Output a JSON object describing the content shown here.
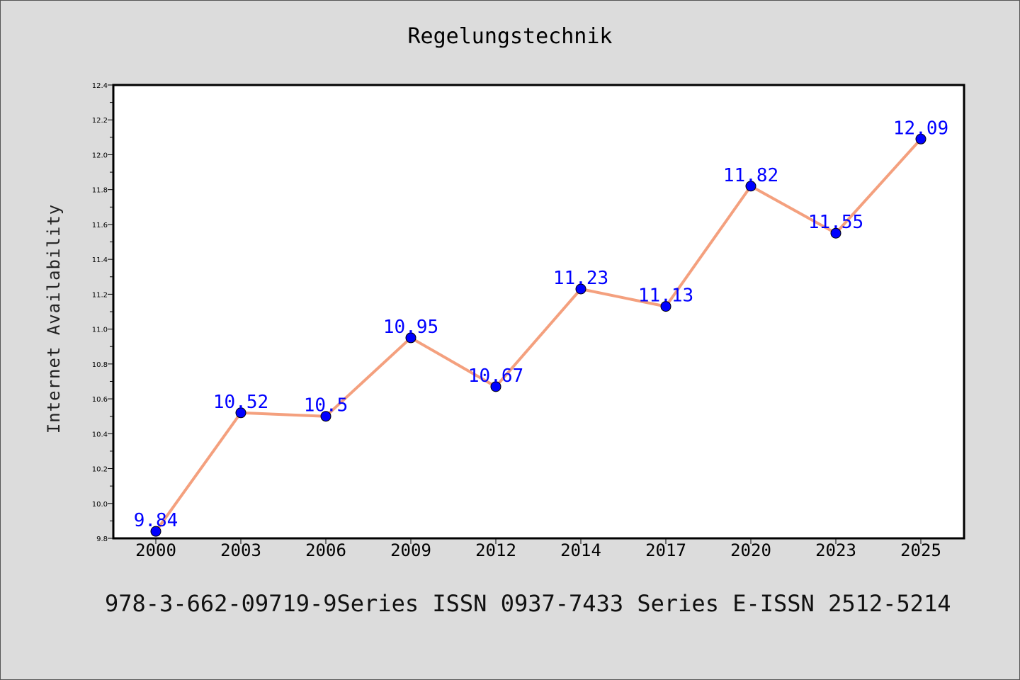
{
  "chart_data": {
    "type": "line",
    "title": "Regelungstechnik",
    "xlabel": "",
    "ylabel": "Internet Availability",
    "categories": [
      "2000",
      "2003",
      "2006",
      "2009",
      "2012",
      "2014",
      "2017",
      "2020",
      "2023",
      "2025"
    ],
    "series": [
      {
        "values": [
          9.84,
          10.52,
          10.5,
          10.95,
          10.67,
          11.23,
          11.13,
          11.82,
          11.55,
          12.09
        ]
      }
    ],
    "data_labels": [
      "9.84",
      "10.52",
      "10.5",
      "10.95",
      "10.67",
      "11.23",
      "11.13",
      "11.82",
      "11.55",
      "12.09"
    ],
    "ylim": [
      9.8,
      12.4
    ],
    "yticks": [
      "9.8",
      "10.0",
      "10.2",
      "10.4",
      "10.6",
      "10.8",
      "11.0",
      "11.2",
      "11.4",
      "11.6",
      "11.8",
      "12.0",
      "12.2",
      "12.4"
    ],
    "grid": false,
    "line_color": "#f4a07e",
    "marker_color": "#0000ff",
    "label_color": "#0000ff",
    "background": "#dcdcdc",
    "plot_background": "#ffffff"
  },
  "footer_text": "978-3-662-09719-9Series ISSN 0937-7433 Series E-ISSN 2512-5214"
}
